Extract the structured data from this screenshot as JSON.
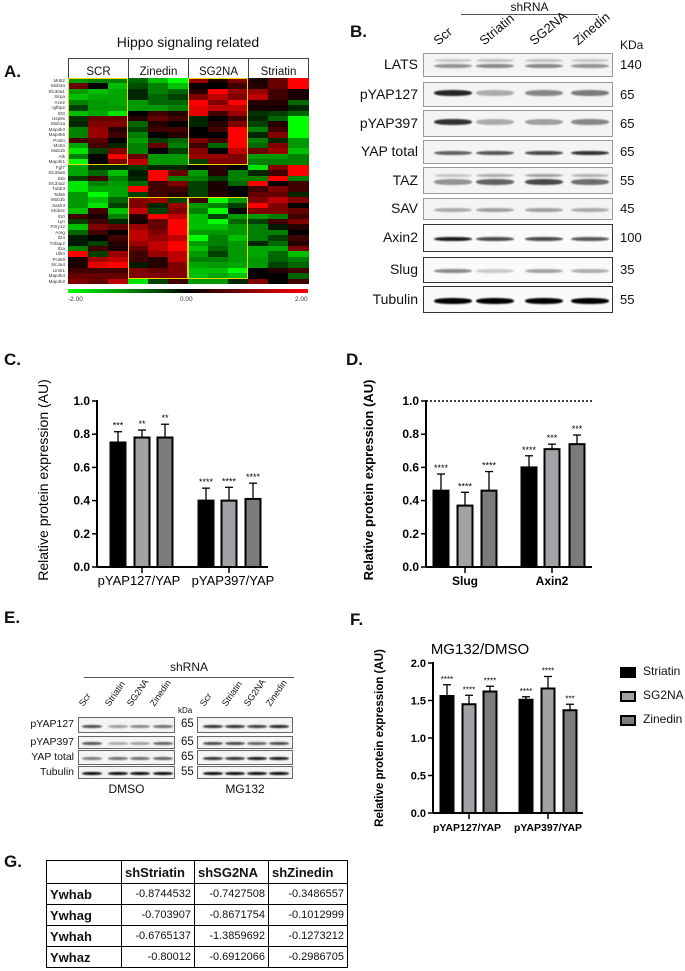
{
  "panels": {
    "A": "A.",
    "B": "B.",
    "C": "C.",
    "D": "D.",
    "E": "E.",
    "F": "F.",
    "G": "G."
  },
  "chart_data": [
    {
      "type": "heatmap",
      "title": "Hippo signaling related",
      "column_groups": [
        "SCR",
        "Zinedin",
        "SG2NA",
        "Striatin"
      ],
      "samples_per_group": 3,
      "rows": [
        "Mob2",
        "Mob3a",
        "Slc30a1",
        "Sirpa",
        "Ace2",
        "Igfbp2",
        "Il33",
        "Usp9x",
        "Mob1a",
        "Map4k3",
        "Map4k5",
        "Postn",
        "Mob4",
        "Mob1b",
        "Alk",
        "Map4k1",
        "Fgf7",
        "Slc39a8",
        "Il1b",
        "Slc34a2",
        "Tubb3",
        "Tafa5",
        "Mob3b",
        "Sash3",
        "Mob3c",
        "Il10",
        "Lyn",
        "P2ry12",
        "Areg",
        "Il24",
        "Tnfaip2",
        "Il1a",
        "Ulk4",
        "Pcsk9",
        "Slc4a4",
        "Limk1",
        "Map4k4",
        "Map4k2"
      ],
      "values": [
        [
          -1.2,
          -1,
          -1,
          -0.8,
          -1.5,
          -2,
          1.2,
          0.2,
          1,
          0.2,
          0.8,
          2
        ],
        [
          0.8,
          0,
          -1.5,
          -0.6,
          -1,
          -1.5,
          0,
          0,
          0.5,
          0.3,
          0.8,
          2
        ],
        [
          -1.2,
          -1.5,
          -1.3,
          -0.3,
          -1,
          -0.8,
          0.3,
          2,
          1.2,
          1.2,
          0.5,
          0.2
        ],
        [
          -1.5,
          -1.3,
          -1.3,
          -0.3,
          -0.8,
          -0.5,
          1,
          1.5,
          1,
          1.5,
          0.5,
          0.2
        ],
        [
          -1,
          -1.2,
          -1.3,
          -1.2,
          -0.8,
          -0.8,
          2,
          1,
          2,
          0.3,
          0.3,
          -0.8
        ],
        [
          -0.5,
          -1.2,
          -1.2,
          -1.2,
          -1.2,
          -1,
          1.8,
          1.5,
          1.5,
          0.2,
          0.2,
          -0.3
        ],
        [
          -1.5,
          -1.3,
          -1.8,
          0,
          0.5,
          0.3,
          1.8,
          0.5,
          1.2,
          -0.4,
          -0.5,
          -0.8
        ],
        [
          -0.4,
          0.8,
          0.8,
          0.3,
          0.8,
          0.5,
          -0.3,
          0,
          0.5,
          -0.3,
          -0.8,
          -2
        ],
        [
          -0.3,
          1,
          1,
          -0.8,
          0.3,
          0,
          -0.3,
          0.3,
          1,
          -0.5,
          0.3,
          -2
        ],
        [
          -1,
          1.2,
          0.3,
          -0.5,
          0.5,
          0.5,
          0,
          0.5,
          2,
          -1,
          0.5,
          -2
        ],
        [
          -1,
          1.2,
          0.5,
          -1,
          0,
          0.3,
          0,
          0,
          2,
          -0.3,
          1,
          -2
        ],
        [
          0.5,
          0.7,
          0,
          -1.2,
          -0.5,
          -0.8,
          1,
          0.5,
          2,
          -1,
          -0.3,
          -1.2
        ],
        [
          -1.3,
          0.5,
          -0.3,
          -1,
          0.8,
          -1,
          0.5,
          -0.8,
          2,
          -0.8,
          1,
          -1.2
        ],
        [
          -1.8,
          -0.5,
          1,
          -1,
          0,
          -0.5,
          1,
          0,
          1.5,
          0.8,
          1.2,
          -1.5
        ],
        [
          -1,
          0,
          2,
          0.8,
          -1.2,
          -1.2,
          1.2,
          1.2,
          1,
          -1.2,
          -1.2,
          -1
        ],
        [
          -2,
          0,
          1,
          1.5,
          -1.2,
          -1.2,
          -0.5,
          1,
          1,
          -1,
          -1,
          -1
        ],
        [
          -1.3,
          -0.3,
          -0.3,
          -0.5,
          -0.3,
          -0.3,
          0,
          0.3,
          0,
          -1.8,
          1,
          2
        ],
        [
          -1.3,
          -0.8,
          -1.5,
          -0.2,
          2,
          0.8,
          -1.2,
          0.3,
          -1,
          -0.3,
          0.5,
          2
        ],
        [
          -0.5,
          0.5,
          -1,
          -0.3,
          2,
          -1,
          -1,
          -0.5,
          -1,
          -1,
          2,
          -1
        ],
        [
          -1.8,
          -1,
          -1.2,
          -0.8,
          0.5,
          1,
          -0.5,
          0.2,
          -0.8,
          2,
          0,
          0.5
        ],
        [
          -1.8,
          -1.3,
          -1.3,
          2,
          0.5,
          0.5,
          -0.5,
          0.2,
          0,
          0.5,
          1,
          0.5
        ],
        [
          -1.2,
          -2,
          -1.3,
          -0.5,
          0.5,
          0.3,
          -0.5,
          0.3,
          0,
          0.8,
          0.8,
          -0.3
        ],
        [
          -1.2,
          -1.5,
          -0.8,
          1,
          1.2,
          -0.5,
          0.5,
          -2,
          -1.2,
          1,
          1.5,
          1
        ],
        [
          -1.2,
          -1.8,
          -0.5,
          1,
          -0.3,
          1.2,
          -1.2,
          -1,
          -0.5,
          2,
          1,
          0
        ],
        [
          -1.5,
          0.5,
          -1.5,
          1.5,
          -0.5,
          1,
          -1,
          -2,
          0,
          1,
          1,
          0.8
        ],
        [
          0.5,
          0.2,
          -1,
          0.3,
          2,
          1.5,
          -1.5,
          -0.5,
          -1.2,
          -1.2,
          -1,
          0.5
        ],
        [
          -0.5,
          0.5,
          -0.3,
          0.2,
          0.8,
          2,
          -1.5,
          -2,
          -0.8,
          -0.5,
          0.5,
          1
        ],
        [
          -1.5,
          1,
          0.8,
          1.2,
          0.8,
          2,
          -1.5,
          -1.5,
          -1.2,
          -1,
          -0.2,
          0.3
        ],
        [
          -0.8,
          0.5,
          0,
          1.5,
          1,
          2,
          -1.2,
          -1.2,
          -1.2,
          -1,
          -1,
          0
        ],
        [
          -0.2,
          0,
          0.5,
          1.5,
          1.2,
          1.5,
          -2,
          -1,
          -1.5,
          -1,
          -0.5,
          0.5
        ],
        [
          -0.2,
          -0.5,
          0.3,
          1.2,
          1.5,
          2,
          -1.2,
          -1,
          -1.2,
          -0.3,
          -0.8,
          0.3
        ],
        [
          -1,
          0.5,
          0.2,
          0.8,
          1.5,
          2,
          -1.5,
          -0.8,
          -1.2,
          -1.3,
          -1.3,
          1
        ],
        [
          2,
          -0.5,
          1.2,
          0.5,
          1.2,
          1.5,
          -1.2,
          -0.5,
          -1.2,
          -1.3,
          -0.8,
          -1.5
        ],
        [
          0.2,
          1.3,
          1.5,
          0.5,
          0.3,
          1.5,
          -1,
          -1,
          -1.2,
          -1.2,
          -0.8,
          -1
        ],
        [
          0.2,
          1.8,
          2,
          -0.2,
          0.3,
          1,
          -1.3,
          -1.2,
          -1.3,
          -1.2,
          -0.5,
          -0.8
        ],
        [
          0.5,
          0.5,
          0.5,
          1,
          0.8,
          1,
          -1.5,
          -1.5,
          -2,
          0,
          0.3,
          0.5
        ],
        [
          0.8,
          0.8,
          0.8,
          1,
          1,
          1,
          -1.5,
          -1.3,
          -1.5,
          0,
          0,
          -0.8
        ],
        [
          1,
          0.8,
          1.5,
          -1.8,
          -0.5,
          0.5,
          -1.2,
          -1.2,
          -0.3,
          1,
          0,
          0.5
        ]
      ],
      "highlights": [
        {
          "group": "SCR",
          "rows": [
            0,
            15
          ]
        },
        {
          "group": "SG2NA",
          "rows": [
            0,
            15
          ]
        },
        {
          "group": "Zinedin",
          "rows": [
            22,
            36
          ]
        },
        {
          "group": "SG2NA",
          "rows": [
            22,
            36
          ]
        }
      ],
      "colorbar": {
        "min": -2,
        "max": 2,
        "labels": [
          "-2.00",
          "0.00",
          "2.00"
        ],
        "low_color": "#00ff00",
        "mid_color": "#000000",
        "high_color": "#ff0000"
      },
      "highlight_color": "#e8d800"
    },
    {
      "type": "bar",
      "title": "",
      "categories": [
        "pYAP127/YAP",
        "pYAP397/YAP"
      ],
      "ylabel": "Relative protein expression (AU)",
      "ylim": [
        0,
        1.0
      ],
      "yticklabels": [
        "0.0",
        "0.2",
        "0.4",
        "0.6",
        "0.8",
        "1.0"
      ],
      "series": [
        {
          "name": "Striatin",
          "color": "#000000",
          "values": [
            0.75,
            0.4
          ],
          "errors": [
            0.065,
            0.075
          ],
          "significance": [
            "***",
            "****"
          ]
        },
        {
          "name": "SG2NA",
          "color": "#a2a2a6",
          "values": [
            0.78,
            0.4
          ],
          "errors": [
            0.045,
            0.08
          ],
          "significance": [
            "**",
            "****"
          ]
        },
        {
          "name": "Zinedin",
          "color": "#7b7b7b",
          "values": [
            0.78,
            0.41
          ],
          "errors": [
            0.08,
            0.095
          ],
          "significance": [
            "**",
            "****"
          ]
        }
      ]
    },
    {
      "type": "bar",
      "title": "",
      "categories": [
        "Slug",
        "Axin2"
      ],
      "ylabel": "Relative protein expression (AU)",
      "ylim": [
        0,
        1.0
      ],
      "yticklabels": [
        "0.0",
        "0.2",
        "0.4",
        "0.6",
        "0.8",
        "1.0"
      ],
      "reference_line": 1.0,
      "series": [
        {
          "name": "Striatin",
          "color": "#000000",
          "values": [
            0.46,
            0.6
          ],
          "errors": [
            0.1,
            0.07
          ],
          "significance": [
            "****",
            "****"
          ]
        },
        {
          "name": "SG2NA",
          "color": "#a2a2a6",
          "values": [
            0.37,
            0.71
          ],
          "errors": [
            0.08,
            0.03
          ],
          "significance": [
            "****",
            "***"
          ]
        },
        {
          "name": "Zinedin",
          "color": "#7b7b7b",
          "values": [
            0.46,
            0.74
          ],
          "errors": [
            0.115,
            0.055
          ],
          "significance": [
            "****",
            "***"
          ]
        }
      ]
    },
    {
      "type": "bar",
      "title": "MG132/DMSO",
      "categories": [
        "pYAP127/YAP",
        "pYAP397/YAP"
      ],
      "ylabel": "Relative protein expression (AU)",
      "ylim": [
        0,
        2.0
      ],
      "yticklabels": [
        "0.0",
        "0.5",
        "1.0",
        "1.5",
        "2.0"
      ],
      "legend": "right",
      "series": [
        {
          "name": "Striatin",
          "color": "#000000",
          "values": [
            1.56,
            1.51
          ],
          "errors": [
            0.15,
            0.04
          ],
          "significance": [
            "****",
            "****"
          ]
        },
        {
          "name": "SG2NA",
          "color": "#a2a2a6",
          "values": [
            1.45,
            1.66
          ],
          "errors": [
            0.12,
            0.16
          ],
          "significance": [
            "****",
            "****"
          ]
        },
        {
          "name": "Zinedin",
          "color": "#7b7b7b",
          "values": [
            1.62,
            1.37
          ],
          "errors": [
            0.07,
            0.08
          ],
          "significance": [
            "****",
            "***"
          ]
        }
      ]
    }
  ],
  "blot_B": {
    "group_label": "shRNA",
    "lanes": [
      "Scr",
      "Striatin",
      "SG2NA",
      "Zinedin"
    ],
    "kda_header": "KDa",
    "rows": [
      {
        "label": "LATS",
        "kda": "140",
        "intensity": [
          0.4,
          0.45,
          0.45,
          0.4
        ]
      },
      {
        "label": "pYAP127",
        "kda": "65",
        "intensity": [
          0.85,
          0.3,
          0.45,
          0.5
        ]
      },
      {
        "label": "pYAP397",
        "kda": "65",
        "intensity": [
          0.8,
          0.3,
          0.35,
          0.45
        ]
      },
      {
        "label": "YAP total",
        "kda": "65",
        "intensity": [
          0.6,
          0.65,
          0.7,
          0.8
        ]
      },
      {
        "label": "TAZ",
        "kda": "55",
        "intensity": [
          0.4,
          0.6,
          0.7,
          0.55
        ]
      },
      {
        "label": "SAV",
        "kda": "45",
        "intensity": [
          0.3,
          0.35,
          0.35,
          0.3
        ]
      },
      {
        "label": "Axin2",
        "kda": "100",
        "intensity": [
          0.9,
          0.7,
          0.7,
          0.65
        ]
      },
      {
        "label": "Slug",
        "kda": "35",
        "intensity": [
          0.45,
          0.2,
          0.35,
          0.3
        ]
      },
      {
        "label": "Tubulin",
        "kda": "55",
        "intensity": [
          1,
          1,
          1,
          1
        ]
      }
    ]
  },
  "blot_E": {
    "group_label": "shRNA",
    "lanes": [
      "Scr",
      "Striatin",
      "SG2NA",
      "Zinedin"
    ],
    "kda_header": "kDa",
    "conditions": [
      "DMSO",
      "MG132"
    ],
    "rows": [
      {
        "label": "pYAP127",
        "kda": "65",
        "intensity": [
          [
            0.7,
            0.35,
            0.45,
            0.55
          ],
          [
            0.8,
            0.8,
            0.75,
            0.85
          ]
        ]
      },
      {
        "label": "pYAP397",
        "kda": "65",
        "intensity": [
          [
            0.65,
            0.3,
            0.35,
            0.6
          ],
          [
            0.7,
            0.7,
            0.6,
            0.7
          ]
        ]
      },
      {
        "label": "YAP total",
        "kda": "65",
        "intensity": [
          [
            0.5,
            0.55,
            0.55,
            0.6
          ],
          [
            0.8,
            0.8,
            0.9,
            0.9
          ]
        ]
      },
      {
        "label": "Tubulin",
        "kda": "55",
        "intensity": [
          [
            0.95,
            0.95,
            0.95,
            0.95
          ],
          [
            0.95,
            0.95,
            0.95,
            0.95
          ]
        ]
      }
    ]
  },
  "table_G": {
    "columns": [
      "shStriatin",
      "shSG2NA",
      "shZinedin"
    ],
    "rows": [
      {
        "gene": "Ywhab",
        "values": [
          "-0.8744532",
          "-0.7427508",
          "-0.3486557"
        ]
      },
      {
        "gene": "Ywhag",
        "values": [
          "-0.703907",
          "-0.8671754",
          "-0.1012999"
        ]
      },
      {
        "gene": "Ywhah",
        "values": [
          "-0.6765137",
          "-1.3859692",
          "-0.1273212"
        ]
      },
      {
        "gene": "Ywhaz",
        "values": [
          "-0.80012",
          "-0.6912066",
          "-0.2986705"
        ]
      }
    ]
  }
}
